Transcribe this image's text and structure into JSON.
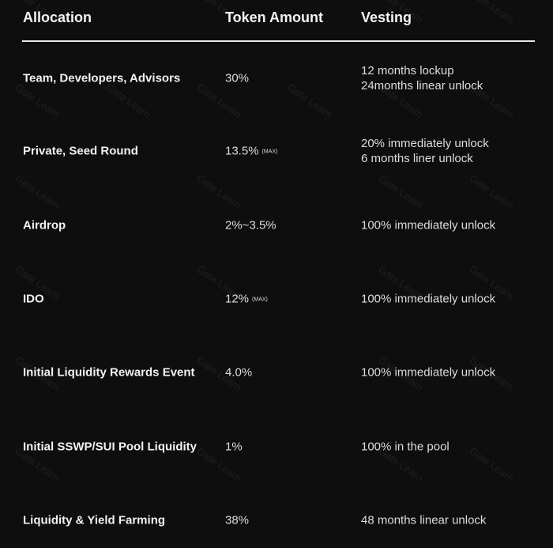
{
  "watermark": "Gate Learn",
  "headers": {
    "allocation": "Allocation",
    "token_amount": "Token Amount",
    "vesting": "Vesting"
  },
  "rows": [
    {
      "allocation": "Team, Developers, Advisors",
      "amount": "30%",
      "note": "",
      "vesting": [
        "12 months lockup",
        "24months linear unlock"
      ]
    },
    {
      "allocation": "Private, Seed Round",
      "amount": "13.5%",
      "note": "(MAX)",
      "vesting": [
        "20% immediately unlock",
        "6 months liner unlock"
      ]
    },
    {
      "allocation": "Airdrop",
      "amount": "2%~3.5%",
      "note": "",
      "vesting": [
        "100% immediately unlock"
      ]
    },
    {
      "allocation": "IDO",
      "amount": "12%",
      "note": "(MAX)",
      "vesting": [
        "100% immediately unlock"
      ]
    },
    {
      "allocation": "Initial Liquidity Rewards Event",
      "amount": "4.0%",
      "note": "",
      "vesting": [
        "100% immediately unlock"
      ]
    },
    {
      "allocation": "Initial SSWP/SUI Pool Liquidity",
      "amount": "1%",
      "note": "",
      "vesting": [
        "100% in the pool"
      ]
    },
    {
      "allocation": "Liquidity & Yield Farming",
      "amount": "38%",
      "note": "",
      "vesting": [
        "48 months linear unlock"
      ]
    }
  ]
}
